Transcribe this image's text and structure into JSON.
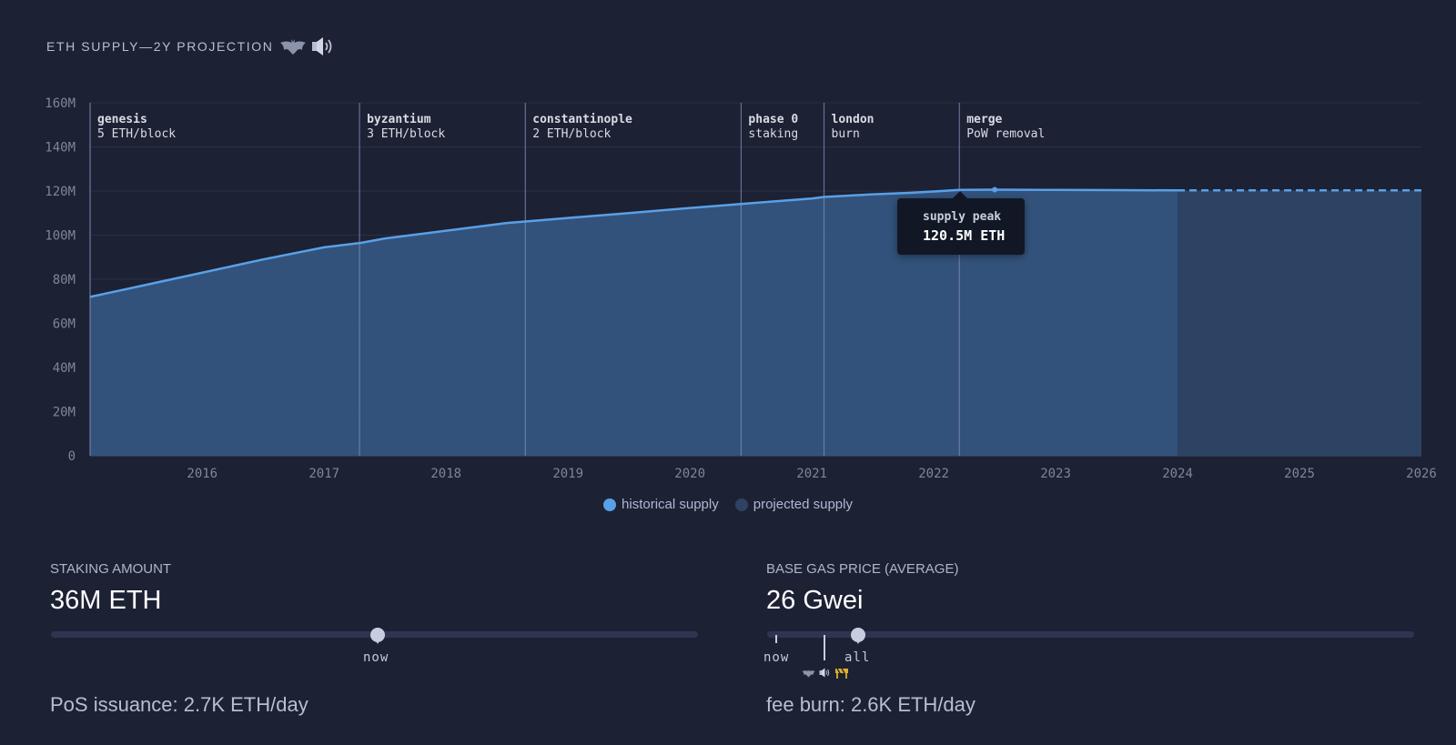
{
  "header": {
    "title": "ETH SUPPLY—2Y PROJECTION",
    "icons": [
      "bat-icon",
      "speaker-icon"
    ]
  },
  "chart_data": {
    "type": "area",
    "title": "ETH SUPPLY—2Y PROJECTION",
    "xlabel": "",
    "ylabel": "",
    "xlim": [
      2015.58,
      2026.5
    ],
    "ylim": [
      0,
      160
    ],
    "y_ticks": [
      "0",
      "20M",
      "40M",
      "60M",
      "80M",
      "100M",
      "120M",
      "140M",
      "160M"
    ],
    "x_ticks": [
      "2016",
      "2017",
      "2018",
      "2019",
      "2020",
      "2021",
      "2022",
      "2023",
      "2024",
      "2025",
      "2026"
    ],
    "grid": true,
    "legend_position": "bottom-center",
    "series": [
      {
        "name": "historical supply",
        "color": "#5aa0e6",
        "x": [
          2015.58,
          2016.0,
          2016.5,
          2017.0,
          2017.5,
          2017.8,
          2018.0,
          2018.5,
          2019.0,
          2019.15,
          2019.5,
          2020.0,
          2020.5,
          2021.0,
          2021.5,
          2021.6,
          2022.0,
          2022.3,
          2022.5,
          2022.71,
          2023.0,
          2023.5,
          2024.0,
          2024.5
        ],
        "values": [
          72.0,
          77.0,
          83.0,
          89.0,
          94.5,
          96.5,
          98.5,
          102.0,
          105.5,
          106.2,
          107.8,
          110.0,
          112.3,
          114.5,
          116.6,
          117.3,
          118.5,
          119.2,
          119.8,
          120.5,
          120.6,
          120.5,
          120.4,
          120.3
        ]
      },
      {
        "name": "projected supply",
        "color": "#2c3f5e",
        "x": [
          2024.5,
          2025.0,
          2025.5,
          2026.0,
          2026.5
        ],
        "values": [
          120.3,
          120.3,
          120.3,
          120.3,
          120.3
        ]
      }
    ],
    "annotations": [
      {
        "x": 2015.58,
        "name": "genesis",
        "detail": "5 ETH/block"
      },
      {
        "x": 2017.79,
        "name": "byzantium",
        "detail": "3 ETH/block"
      },
      {
        "x": 2019.15,
        "name": "constantinople",
        "detail": "2 ETH/block"
      },
      {
        "x": 2020.92,
        "name": "phase 0",
        "detail": "staking"
      },
      {
        "x": 2021.6,
        "name": "london",
        "detail": "burn"
      },
      {
        "x": 2022.71,
        "name": "merge",
        "detail": "PoW removal"
      }
    ],
    "tooltip": {
      "label": "supply peak",
      "value": "120.5M ETH"
    }
  },
  "legend": [
    {
      "label": "historical supply",
      "color": "#5aa0e6"
    },
    {
      "label": "projected supply",
      "color": "#2f4263"
    }
  ],
  "staking": {
    "label": "STAKING AMOUNT",
    "value": "36M ETH",
    "slider_position": 0.5,
    "marker_label": "now",
    "result": "PoS issuance: 2.7K ETH/day"
  },
  "gas": {
    "label": "BASE GAS PRICE (AVERAGE)",
    "value": "26 Gwei",
    "slider_position": 0.14,
    "marker_now": "now",
    "marker_all": "all",
    "marker_icons": [
      "bat-icon",
      "speaker-icon",
      "barrier-icon"
    ],
    "result": "fee burn: 2.6K ETH/day"
  }
}
